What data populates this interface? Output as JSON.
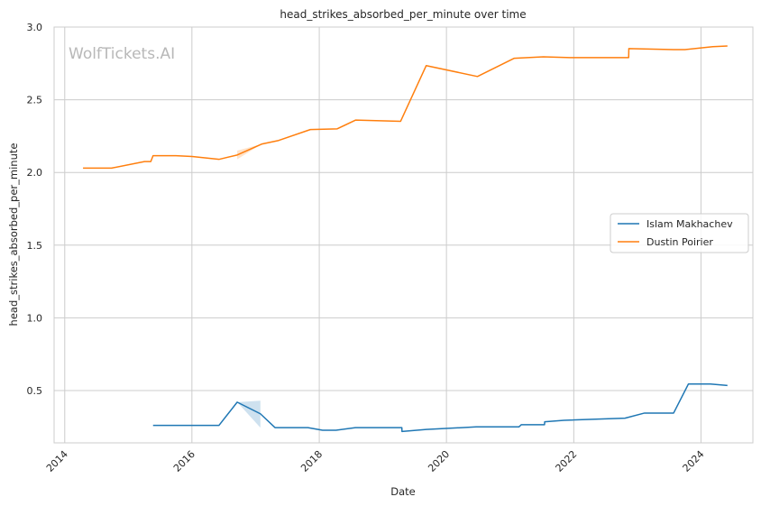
{
  "chart_data": {
    "type": "line",
    "title": "head_strikes_absorbed_per_minute over time",
    "xlabel": "Date",
    "ylabel": "head_strikes_absorbed_per_minute",
    "watermark": "WolfTickets.AI",
    "xlim": [
      "2013-11-01",
      "2024-10-25"
    ],
    "ylim": [
      0.14,
      3.0
    ],
    "xticks": [
      "2014-01-01",
      "2016-01-01",
      "2018-01-01",
      "2020-01-01",
      "2022-01-01",
      "2024-01-01"
    ],
    "xtick_labels": [
      "2014",
      "2016",
      "2018",
      "2020",
      "2022",
      "2024"
    ],
    "yticks": [
      0.5,
      1.0,
      1.5,
      2.0,
      2.5,
      3.0
    ],
    "ytick_labels": [
      "0.5",
      "1.0",
      "1.5",
      "2.0",
      "2.5",
      "3.0"
    ],
    "grid": true,
    "legend_position": "center-right",
    "series": [
      {
        "name": "Islam Makhachev",
        "color": "#1f77b4",
        "x": [
          "2015-05-23",
          "2016-06-04",
          "2016-09-17",
          "2017-01-28",
          "2017-04-22",
          "2017-10-28",
          "2018-01-20",
          "2018-04-07",
          "2018-07-28",
          "2019-04-20",
          "2019-04-21",
          "2019-09-07",
          "2020-06-20",
          "2021-02-20",
          "2021-03-06",
          "2021-07-17",
          "2021-07-18",
          "2021-11-06",
          "2022-10-22",
          "2023-02-11",
          "2023-07-28",
          "2023-10-21",
          "2024-02-24",
          "2024-06-01"
        ],
        "y": [
          0.26,
          0.26,
          0.42,
          0.34,
          0.245,
          0.245,
          0.227,
          0.227,
          0.245,
          0.245,
          0.218,
          0.232,
          0.25,
          0.25,
          0.265,
          0.265,
          0.285,
          0.295,
          0.31,
          0.345,
          0.345,
          0.545,
          0.545,
          0.535
        ],
        "band": {
          "x": [
            "2016-09-17",
            "2017-01-28"
          ],
          "low": [
            0.42,
            0.245
          ],
          "high": [
            0.42,
            0.43
          ]
        }
      },
      {
        "name": "Dustin Poirier",
        "color": "#ff7f0e",
        "x": [
          "2014-04-16",
          "2014-09-27",
          "2015-04-04",
          "2015-05-10",
          "2015-05-23",
          "2015-10-01",
          "2016-01-02",
          "2016-06-04",
          "2016-09-17",
          "2017-02-04",
          "2017-05-13",
          "2017-11-11",
          "2018-04-14",
          "2018-07-28",
          "2019-04-13",
          "2019-09-07",
          "2020-06-27",
          "2021-01-23",
          "2021-07-10",
          "2021-12-11",
          "2022-11-12",
          "2022-11-13",
          "2023-07-29",
          "2023-10-01",
          "2024-03-09",
          "2024-06-01"
        ],
        "y": [
          2.03,
          2.03,
          2.075,
          2.075,
          2.115,
          2.115,
          2.11,
          2.09,
          2.12,
          2.195,
          2.22,
          2.295,
          2.3,
          2.36,
          2.352,
          2.735,
          2.66,
          2.785,
          2.795,
          2.79,
          2.79,
          2.852,
          2.845,
          2.845,
          2.865,
          2.87
        ],
        "band": {
          "x": [
            "2016-09-17",
            "2017-02-04"
          ],
          "low": [
            2.09,
            2.195
          ],
          "high": [
            2.15,
            2.195
          ]
        }
      }
    ]
  }
}
